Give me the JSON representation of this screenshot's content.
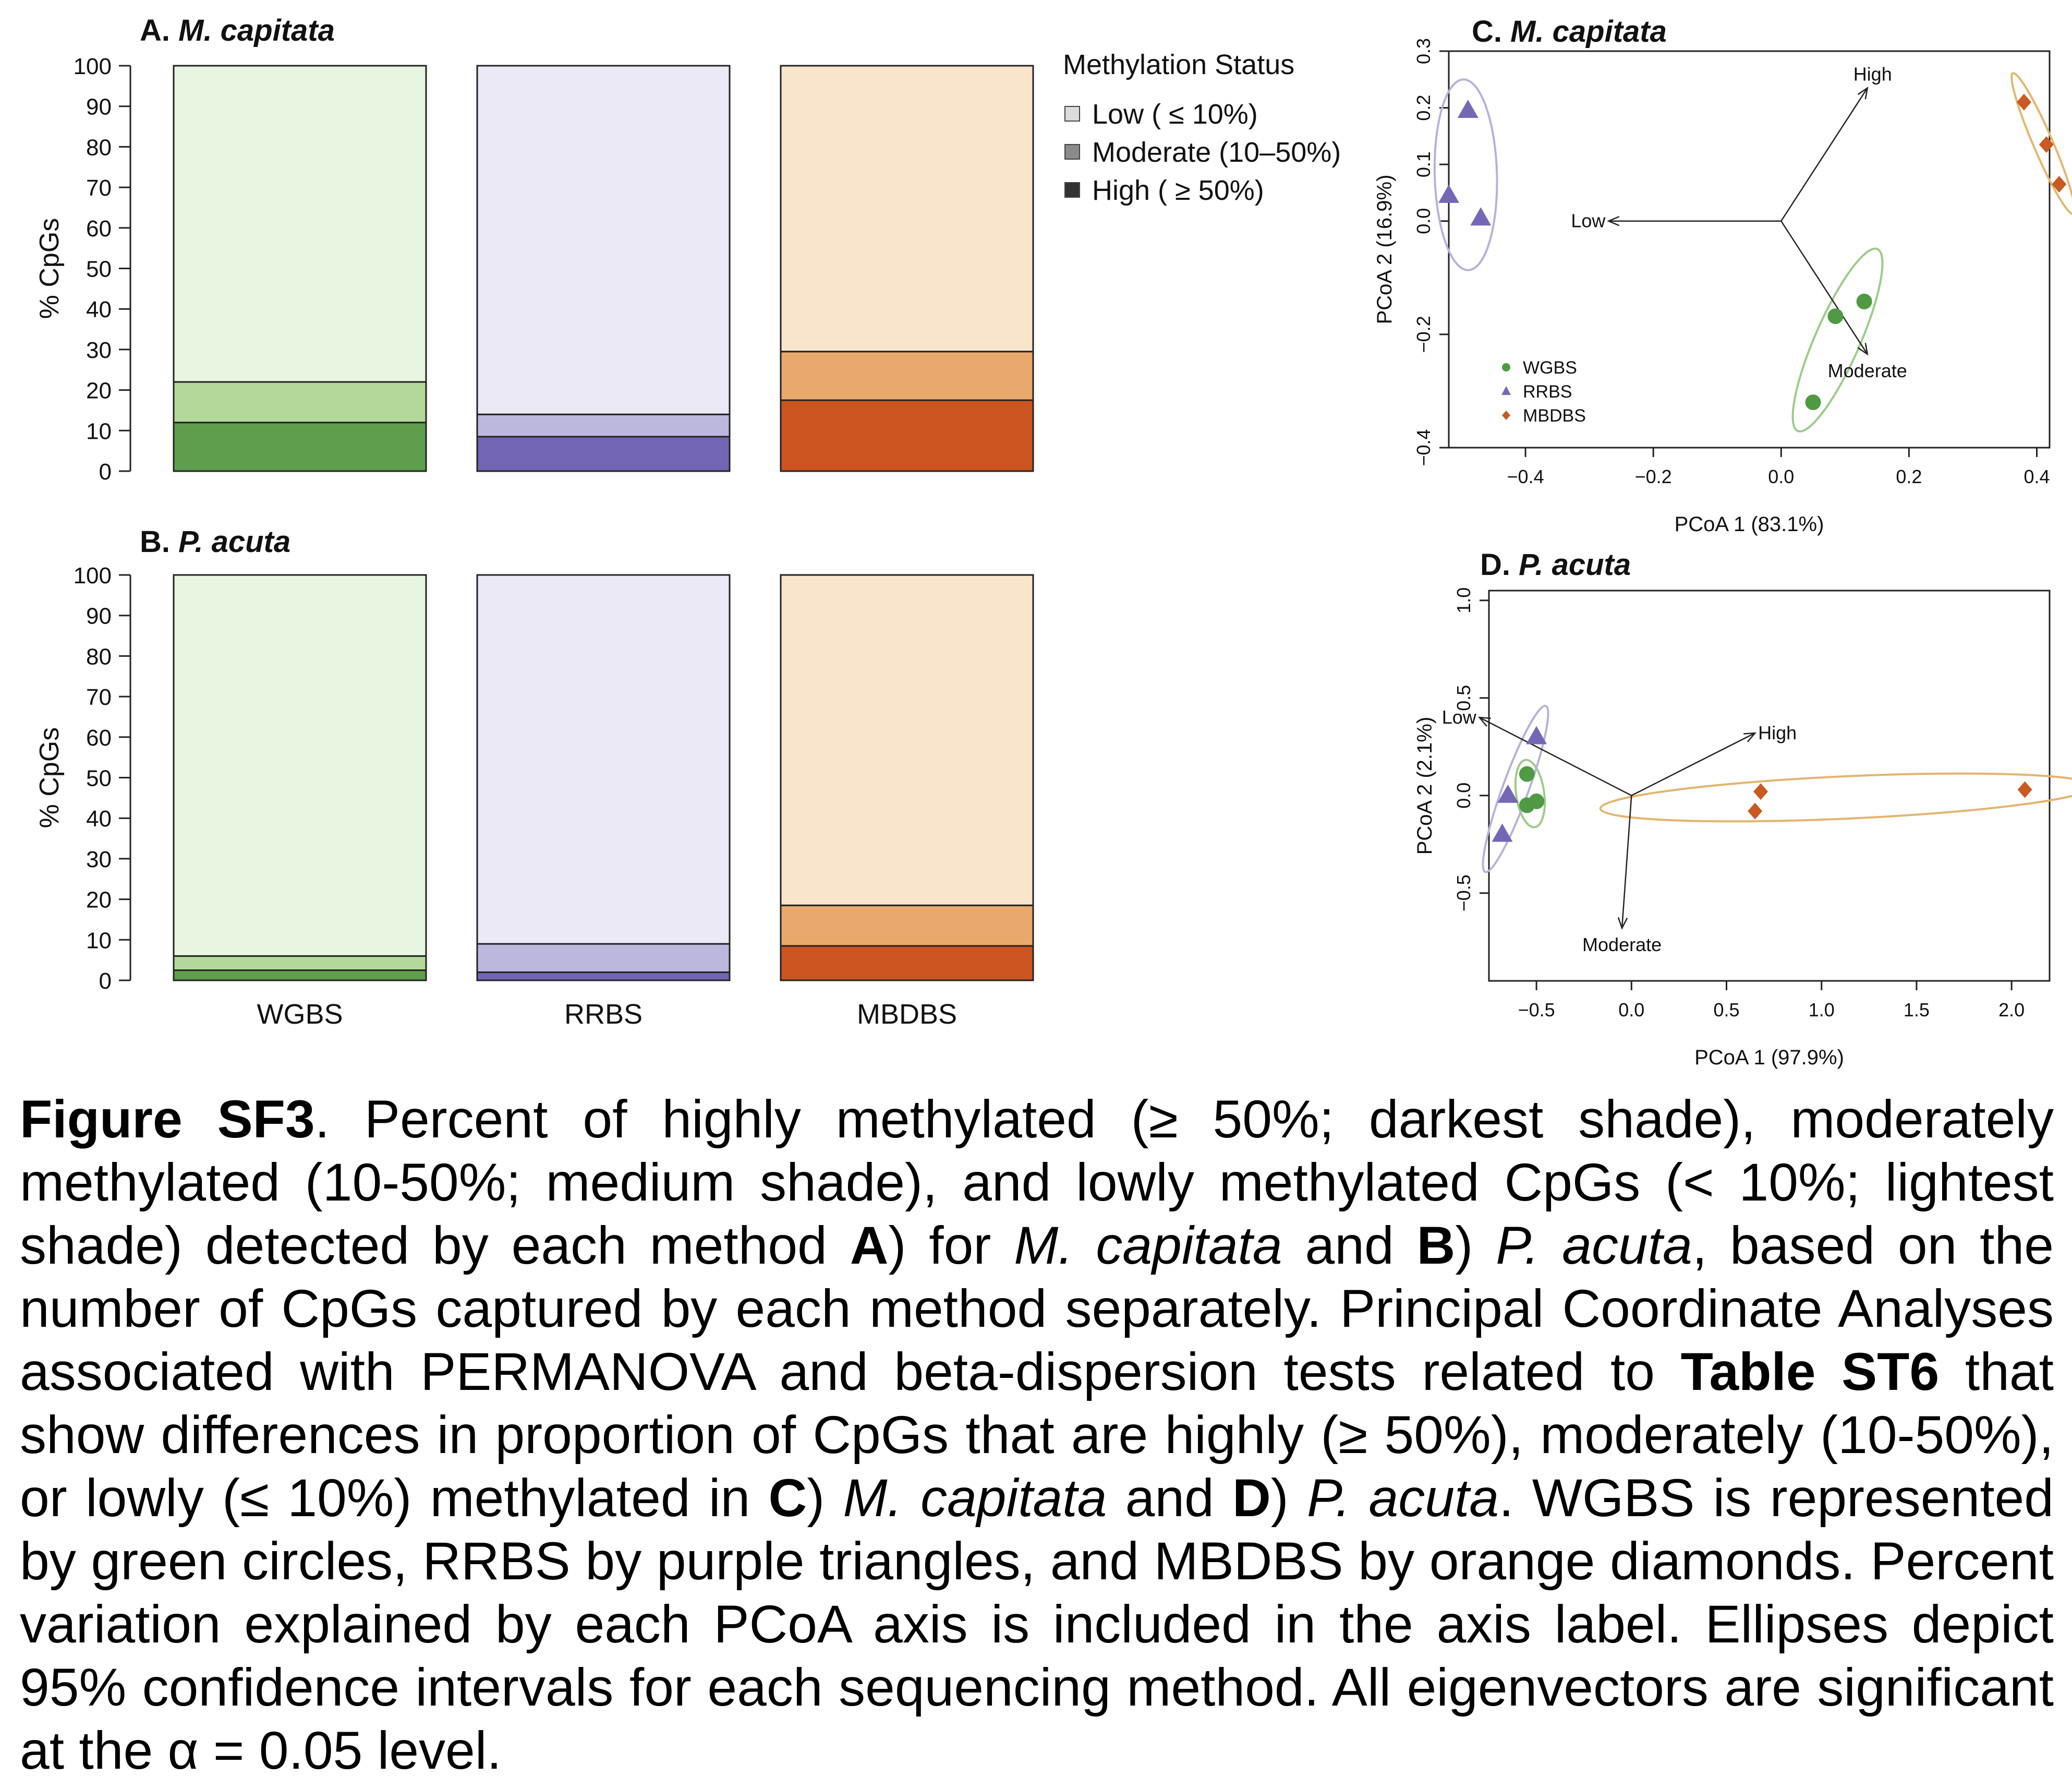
{
  "methods": [
    "WGBS",
    "RRBS",
    "MBDBS"
  ],
  "colors": {
    "WGBS": {
      "low": "#e8f5e0",
      "moderate": "#b2d99a",
      "high": "#5e9e4c",
      "point": "#4f9a43"
    },
    "RRBS": {
      "low": "#ebe9f5",
      "moderate": "#bbb7dd",
      "high": "#7265b3",
      "point": "#7467b6"
    },
    "MBDBS": {
      "low": "#f9e5cc",
      "moderate": "#e9a96c",
      "high": "#cb5420",
      "point": "#c85a22"
    },
    "border": "#222222",
    "ellipse_wgbs": "#9ccb8a",
    "ellipse_rrbs": "#b7b1d8",
    "ellipse_mbdbs": "#e3b56e"
  },
  "legend": {
    "title": "Methylation Status",
    "items": [
      "Low ( ≤ 10%)",
      "Moderate (10–50%)",
      "High ( ≥ 50%)"
    ],
    "swatch_colors": [
      "#dcdcdc",
      "#8a8a8a",
      "#333333"
    ]
  },
  "chart_data": [
    {
      "panel": "A",
      "species": "M. capitata",
      "title_prefix": "A.",
      "type": "bar",
      "stacked": true,
      "categories": [
        "WGBS",
        "RRBS",
        "MBDBS"
      ],
      "ylabel": "% CpGs",
      "xlabel": "",
      "ylim": [
        0,
        100
      ],
      "yticks": [
        0,
        10,
        20,
        30,
        40,
        50,
        60,
        70,
        80,
        90,
        100
      ],
      "series": [
        {
          "name": "High ( ≥ 50%)",
          "values": [
            12,
            8.5,
            17.5
          ]
        },
        {
          "name": "Moderate (10–50%)",
          "values": [
            10,
            5.5,
            12
          ]
        },
        {
          "name": "Low ( ≤ 10%)",
          "values": [
            78,
            86,
            70.5
          ]
        }
      ]
    },
    {
      "panel": "B",
      "species": "P. acuta",
      "title_prefix": "B.",
      "type": "bar",
      "stacked": true,
      "categories": [
        "WGBS",
        "RRBS",
        "MBDBS"
      ],
      "ylabel": "% CpGs",
      "xlabel": "",
      "ylim": [
        0,
        100
      ],
      "yticks": [
        0,
        10,
        20,
        30,
        40,
        50,
        60,
        70,
        80,
        90,
        100
      ],
      "series": [
        {
          "name": "High ( ≥ 50%)",
          "values": [
            2.5,
            2,
            8.5
          ]
        },
        {
          "name": "Moderate (10–50%)",
          "values": [
            3.5,
            7,
            10
          ]
        },
        {
          "name": "Low ( ≤ 10%)",
          "values": [
            94,
            91,
            81.5
          ]
        }
      ]
    },
    {
      "panel": "C",
      "species": "M. capitata",
      "title_prefix": "C.",
      "type": "scatter",
      "xlabel": "PCoA 1 (83.1%)",
      "ylabel": "PCoA 2 (16.9%)",
      "xlim": [
        -0.52,
        0.42
      ],
      "ylim": [
        -0.4,
        0.3
      ],
      "xticks": [
        -0.4,
        -0.2,
        0.0,
        0.2,
        0.4
      ],
      "xtick_labels": [
        "−0.4",
        "−0.2",
        "0.0",
        "0.2",
        "0.4"
      ],
      "yticks": [
        -0.4,
        -0.2,
        0.0,
        0.1,
        0.2,
        0.3
      ],
      "ytick_labels": [
        "−0.4",
        "−0.2",
        "0.0",
        "0.1",
        "0.2",
        "0.3"
      ],
      "series": [
        {
          "name": "WGBS",
          "marker": "circle",
          "points": [
            [
              0.085,
              -0.168
            ],
            [
              0.13,
              -0.142
            ],
            [
              0.05,
              -0.32
            ]
          ]
        },
        {
          "name": "RRBS",
          "marker": "triangle",
          "points": [
            [
              -0.49,
              0.195
            ],
            [
              -0.52,
              0.045
            ],
            [
              -0.47,
              0.005
            ]
          ]
        },
        {
          "name": "MBDBS",
          "marker": "diamond",
          "points": [
            [
              0.38,
              0.21
            ],
            [
              0.415,
              0.135
            ],
            [
              0.435,
              0.065
            ]
          ]
        }
      ],
      "vectors": [
        {
          "label": "High",
          "x": 0.135,
          "y": 0.235
        },
        {
          "label": "Low",
          "x": -0.27,
          "y": 0.0
        },
        {
          "label": "Moderate",
          "x": 0.135,
          "y": -0.235
        }
      ],
      "vector_origin": [
        0.0,
        0.0
      ],
      "legend_entries": [
        "WGBS",
        "RRBS",
        "MBDBS"
      ],
      "legend_position": "bottom-left"
    },
    {
      "panel": "D",
      "species": "P. acuta",
      "title_prefix": "D.",
      "type": "scatter",
      "xlabel": "PCoA 1 (97.9%)",
      "ylabel": "PCoA 2 (2.1%)",
      "xlim": [
        -0.75,
        2.2
      ],
      "ylim": [
        -0.95,
        1.05
      ],
      "xticks": [
        -0.5,
        0.0,
        0.5,
        1.0,
        1.5,
        2.0
      ],
      "xtick_labels": [
        "−0.5",
        "0.0",
        "0.5",
        "1.0",
        "1.5",
        "2.0"
      ],
      "yticks": [
        -0.5,
        0.0,
        0.5,
        1.0
      ],
      "ytick_labels": [
        "−0.5",
        "0.0",
        "0.5",
        "1.0"
      ],
      "series": [
        {
          "name": "WGBS",
          "marker": "circle",
          "points": [
            [
              -0.55,
              0.11
            ],
            [
              -0.5,
              -0.03
            ],
            [
              -0.55,
              -0.05
            ]
          ]
        },
        {
          "name": "RRBS",
          "marker": "triangle",
          "points": [
            [
              -0.5,
              0.3
            ],
            [
              -0.65,
              0.0
            ],
            [
              -0.68,
              -0.2
            ]
          ]
        },
        {
          "name": "MBDBS",
          "marker": "diamond",
          "points": [
            [
              0.68,
              0.02
            ],
            [
              0.65,
              -0.08
            ],
            [
              2.07,
              0.03
            ]
          ]
        }
      ],
      "vectors": [
        {
          "label": "Low",
          "x": -0.8,
          "y": 0.4
        },
        {
          "label": "High",
          "x": 0.65,
          "y": 0.32
        },
        {
          "label": "Moderate",
          "x": -0.05,
          "y": -0.68
        }
      ],
      "vector_origin": [
        0.0,
        0.0
      ]
    }
  ],
  "caption": {
    "fig_label": "Figure SF3",
    "p1": ". Percent of highly methylated (≥ 50%; darkest shade), moderately methylated (10-50%; medium shade), and lowly methylated CpGs (< 10%; lightest shade) detected by each method ",
    "A": "A",
    "p2": ") for ",
    "sp1": "M. capitata",
    "p3": " and ",
    "B": "B",
    "p4": ") ",
    "sp2": "P. acuta",
    "p5": ", based on the number of CpGs captured by each method separately. Principal Coordinate Analyses associated with PERMANOVA and beta-dispersion tests related to ",
    "table": "Table ST6",
    "p6": " that show differences in proportion of CpGs that are highly (≥ 50%), moderately (10-50%), or lowly (≤ 10%) methylated in ",
    "C": "C",
    "p7": ") ",
    "sp3": "M. capitata",
    "p8": " and ",
    "D": "D",
    "p9": ") ",
    "sp4": "P. acuta",
    "p10": ". WGBS is represented by green circles, RRBS by purple triangles, and MBDBS by orange diamonds. Percent variation explained by each PCoA axis is included in the axis label. Ellipses depict 95% confidence intervals for each sequencing method. All eigenvectors are significant at the α = 0.05 level."
  }
}
